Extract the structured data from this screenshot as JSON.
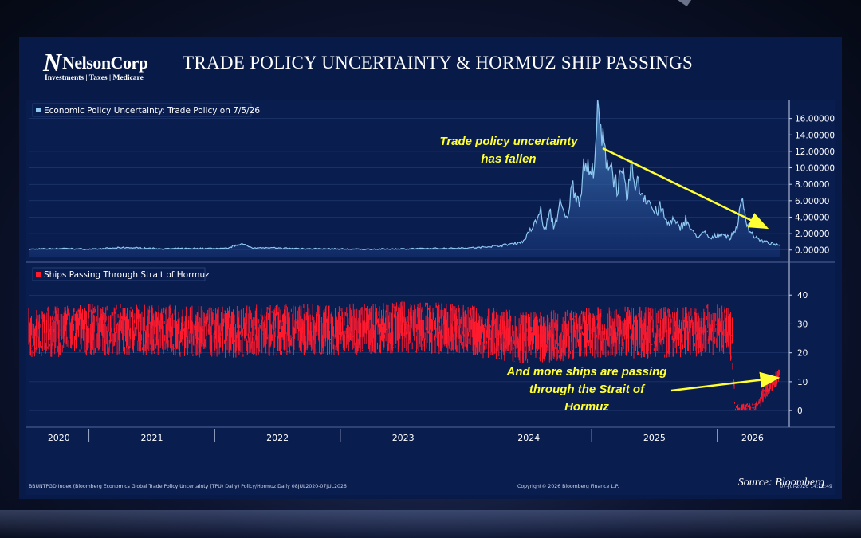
{
  "header": {
    "title": "TRADE POLICY UNCERTAINTY & HORMUZ SHIP PASSINGS",
    "logo": {
      "name": "NelsonCorp",
      "tagline": "Investments | Taxes | Medicare"
    }
  },
  "source": "Source: Bloomberg",
  "footer": {
    "left": "BBUNTPGD Index (Bloomberg Economics Global Trade Policy Uncertainty (TPU) Daily) Policy/Hormuz Daily 08JUL2020-07JUL2026",
    "center": "Copyright© 2026 Bloomberg Finance L.P.",
    "right": "07-Jul-2026 14:15:49"
  },
  "colors": {
    "tpu": "#8ec8f0",
    "ships": "#ff1a2e",
    "annotation": "#ffff33",
    "panel": "#0a1d4f"
  },
  "chart_data": [
    {
      "type": "area",
      "legend": "Economic Policy Uncertainty: Trade Policy on 7/5/26",
      "x_unit": "year",
      "ylim": [
        -0.8,
        18
      ],
      "y_ticks": [
        "16.00000",
        "14.00000",
        "12.00000",
        "10.00000",
        "8.00000",
        "6.00000",
        "4.00000",
        "2.00000",
        "0.00000"
      ],
      "series": [
        {
          "name": "Economic Policy Uncertainty: Trade Policy",
          "x": [
            2020.52,
            2020.8,
            2021.0,
            2021.3,
            2021.6,
            2021.9,
            2022.1,
            2022.2,
            2022.3,
            2022.6,
            2022.9,
            2023.2,
            2023.5,
            2023.8,
            2024.1,
            2024.3,
            2024.45,
            2024.55,
            2024.6,
            2024.62,
            2024.67,
            2024.7,
            2024.75,
            2024.8,
            2024.85,
            2024.9,
            2024.95,
            2025.0,
            2025.05,
            2025.1,
            2025.15,
            2025.2,
            2025.25,
            2025.28,
            2025.31,
            2025.35,
            2025.4,
            2025.45,
            2025.5,
            2025.55,
            2025.6,
            2025.65,
            2025.7,
            2025.75,
            2025.8,
            2025.85,
            2025.9,
            2025.95,
            2026.0,
            2026.05,
            2026.1,
            2026.15,
            2026.2,
            2026.25,
            2026.3,
            2026.35,
            2026.4,
            2026.45,
            2026.5
          ],
          "y": [
            0.1,
            0.2,
            0.1,
            0.3,
            0.15,
            0.2,
            0.2,
            0.8,
            0.3,
            0.2,
            0.15,
            0.1,
            0.15,
            0.2,
            0.3,
            0.6,
            1.0,
            3.2,
            5.0,
            2.2,
            4.5,
            2.8,
            5.5,
            3.6,
            8.0,
            6.0,
            11.0,
            8.5,
            16.2,
            12.0,
            10.5,
            7.8,
            8.8,
            6.0,
            9.6,
            8.5,
            7.0,
            6.2,
            4.5,
            5.2,
            3.2,
            3.6,
            2.6,
            3.8,
            2.2,
            1.6,
            2.1,
            1.3,
            1.9,
            2.0,
            1.4,
            2.6,
            6.0,
            2.5,
            1.6,
            1.1,
            0.9,
            0.7,
            0.5
          ]
        }
      ],
      "annotation": "Trade policy uncertainty\nhas fallen"
    },
    {
      "type": "bar",
      "legend": "Ships Passing Through Strait of Hormuz",
      "x_unit": "year",
      "ylim": [
        -3,
        50
      ],
      "y_ticks": [
        "40",
        "30",
        "20",
        "10",
        "0"
      ],
      "x_ticks": [
        "2020",
        "2021",
        "2022",
        "2023",
        "2024",
        "2025",
        "2026"
      ],
      "series": [
        {
          "name": "Ships Passing Through Strait of Hormuz",
          "x": [
            2020.52,
            2021.0,
            2021.5,
            2022.0,
            2022.5,
            2023.0,
            2023.5,
            2024.0,
            2024.5,
            2025.0,
            2025.5,
            2026.0,
            2026.12,
            2026.14,
            2026.3,
            2026.42,
            2026.5
          ],
          "y": [
            27,
            28,
            28,
            27,
            28,
            28,
            29,
            28,
            25,
            27,
            27,
            28,
            26,
            1,
            1,
            9,
            12
          ]
        }
      ],
      "annotation": "And more ships are passing\nthrough the Strait of\nHormuz"
    }
  ]
}
